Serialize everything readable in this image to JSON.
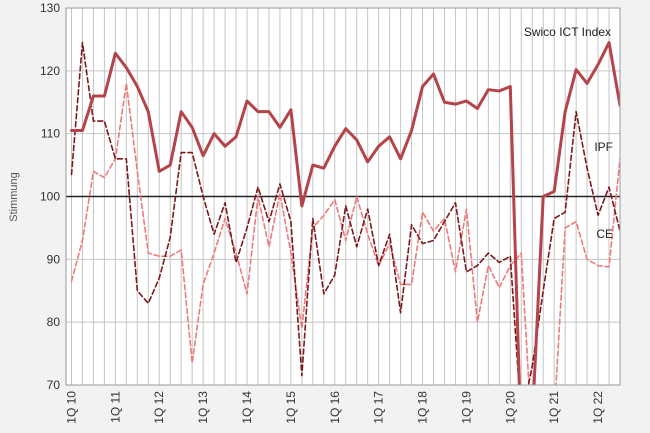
{
  "chart_data": {
    "type": "line",
    "ylabel": "Stimmung",
    "xlabel": "",
    "title": "",
    "ylim": [
      70,
      130
    ],
    "yticks": [
      70,
      80,
      90,
      100,
      110,
      120,
      130
    ],
    "reference_line": 100,
    "grid": true,
    "x_tick_labels": [
      "1Q 10",
      "1Q 11",
      "1Q 12",
      "1Q 13",
      "1Q 14",
      "1Q 15",
      "1Q 16",
      "1Q 17",
      "1Q 18",
      "1Q 19",
      "1Q 20",
      "1Q 21",
      "1Q 22"
    ],
    "series": [
      {
        "name": "Swico ICT Index",
        "color": "#b5444a",
        "style": "solid",
        "values": [
          110.5,
          110.5,
          116,
          116,
          122.8,
          120.5,
          117.5,
          113.5,
          104,
          105,
          113.5,
          111,
          106.5,
          110,
          108,
          109.5,
          115.2,
          113.5,
          113.5,
          111,
          113.8,
          98.5,
          105,
          104.5,
          108,
          110.8,
          109,
          105.5,
          108,
          109.5,
          106,
          110.5,
          117.5,
          119.5,
          115,
          114.7,
          115.2,
          114,
          117,
          116.8,
          117.5,
          60,
          64,
          100,
          100.8,
          113.5,
          120.2,
          118,
          121,
          124.5,
          114.5
        ]
      },
      {
        "name": "CE",
        "color": "#7a1a1d",
        "style": "dashed",
        "values": [
          103.5,
          124.5,
          112,
          112,
          106,
          106,
          85,
          83,
          87,
          93.5,
          107,
          107,
          100,
          94,
          99,
          89.5,
          95,
          101.5,
          96,
          102,
          96,
          71.5,
          96.5,
          84.5,
          87.5,
          98.5,
          92,
          98,
          89,
          94,
          81.5,
          95.5,
          92.5,
          93,
          96,
          99,
          88,
          89,
          91,
          89.5,
          90.5,
          64.5,
          73,
          85,
          96.5,
          97.5,
          113.5,
          104.5,
          97,
          101.5,
          94.5
        ]
      },
      {
        "name": "IPF",
        "color": "#ee7b7b",
        "style": "dashed",
        "values": [
          86.5,
          93,
          104,
          103,
          106,
          118,
          104,
          91,
          90.5,
          90.5,
          91.5,
          73.5,
          86,
          91,
          96.5,
          91,
          84.5,
          100,
          92,
          100.5,
          91,
          79,
          95,
          97,
          99.5,
          93,
          100,
          94,
          89,
          92.5,
          86,
          86,
          97.5,
          94.5,
          96.5,
          88,
          98,
          80,
          89,
          85.5,
          89,
          91,
          61,
          66,
          65,
          95,
          96,
          90,
          89,
          88.8,
          106
        ]
      }
    ]
  }
}
